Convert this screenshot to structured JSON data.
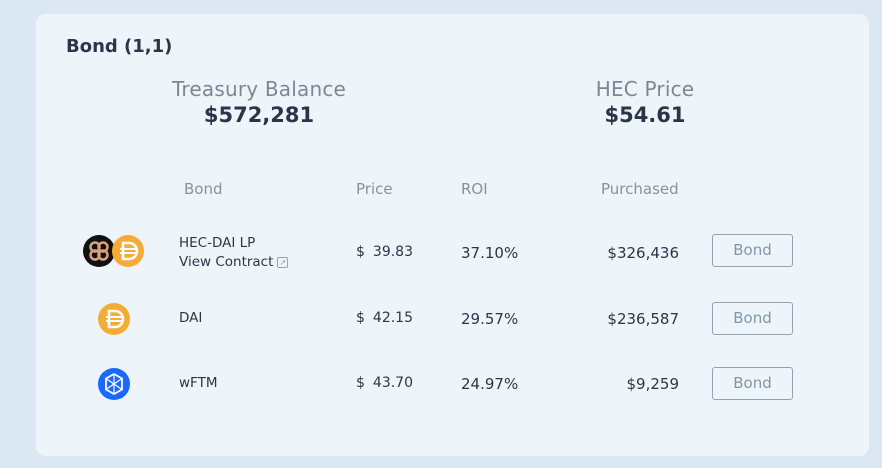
{
  "card": {
    "title": "Bond (1,1)",
    "treasury": {
      "label": "Treasury Balance",
      "value": "$572,281"
    },
    "hec_price": {
      "label": "HEC Price",
      "value": "$54.61"
    }
  },
  "table": {
    "headers": {
      "bond": "Bond",
      "price": "Price",
      "roi": "ROI",
      "purchased": "Purchased"
    },
    "rows": [
      {
        "name": "HEC-DAI LP",
        "contract_label": "View Contract",
        "currency": "$",
        "price": "39.83",
        "roi": "37.10%",
        "purchased": "$326,436",
        "button": "Bond",
        "icons": [
          "hec-token-icon",
          "dai-token-icon"
        ]
      },
      {
        "name": "DAI",
        "currency": "$",
        "price": "42.15",
        "roi": "29.57%",
        "purchased": "$236,587",
        "button": "Bond",
        "icons": [
          "dai-token-icon"
        ]
      },
      {
        "name": "wFTM",
        "currency": "$",
        "price": "43.70",
        "roi": "24.97%",
        "purchased": "$9,259",
        "button": "Bond",
        "icons": [
          "fantom-token-icon"
        ]
      }
    ]
  },
  "colors": {
    "card_bg": "#eef5fa",
    "page_bg": "#dbe8f3",
    "dai": "#f5ac37",
    "fantom": "#1969ff",
    "hec": "#111111"
  }
}
